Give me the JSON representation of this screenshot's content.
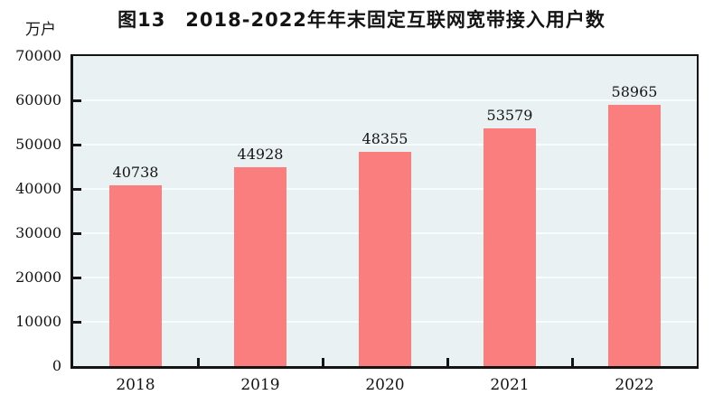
{
  "chart_data": {
    "type": "bar",
    "title": "图13　2018-2022年年末固定互联网宽带接入用户数",
    "unit_label": "万户",
    "categories": [
      "2018",
      "2019",
      "2020",
      "2021",
      "2022"
    ],
    "values": [
      40738,
      44928,
      48355,
      53579,
      58965
    ],
    "data_labels": [
      "40738",
      "44928",
      "48355",
      "53579",
      "58965"
    ],
    "ylim": [
      0,
      70000
    ],
    "ytick_step": 10000,
    "ytick_labels": [
      "0",
      "10000",
      "20000",
      "30000",
      "40000",
      "50000",
      "60000",
      "70000"
    ],
    "grid": true,
    "legend_position": "none",
    "colors": {
      "bar": "#fb7e7e",
      "plot_background": "#e9f1f3",
      "gridline": "#f9fcfc",
      "axis": "#141414",
      "text": "#141414"
    }
  }
}
